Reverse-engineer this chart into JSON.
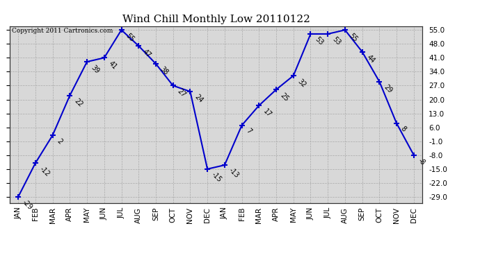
{
  "title": "Wind Chill Monthly Low 20110122",
  "copyright": "Copyright 2011 Cartronics.com",
  "x_labels": [
    "JAN",
    "FEB",
    "MAR",
    "APR",
    "MAY",
    "JUN",
    "JUL",
    "AUG",
    "SEP",
    "OCT",
    "NOV",
    "DEC",
    "JAN",
    "FEB",
    "MAR",
    "APR",
    "MAY",
    "JUN",
    "JUL",
    "AUG",
    "SEP",
    "OCT",
    "NOV",
    "DEC"
  ],
  "y_values": [
    -29,
    -12,
    2,
    22,
    39,
    41,
    55,
    47,
    38,
    27,
    24,
    -15,
    -13,
    7,
    17,
    25,
    32,
    53,
    53,
    55,
    44,
    29,
    8,
    -8
  ],
  "y_ticks": [
    -29.0,
    -22.0,
    -15.0,
    -8.0,
    -1.0,
    6.0,
    13.0,
    20.0,
    27.0,
    34.0,
    41.0,
    48.0,
    55.0
  ],
  "ylim_min": -32,
  "ylim_max": 57,
  "line_color": "#0000cc",
  "marker_color": "#0000cc",
  "fig_bg_color": "#ffffff",
  "plot_bg_color": "#d8d8d8",
  "title_fontsize": 11,
  "label_fontsize": 7,
  "tick_fontsize": 7.5,
  "copyright_fontsize": 6.5
}
